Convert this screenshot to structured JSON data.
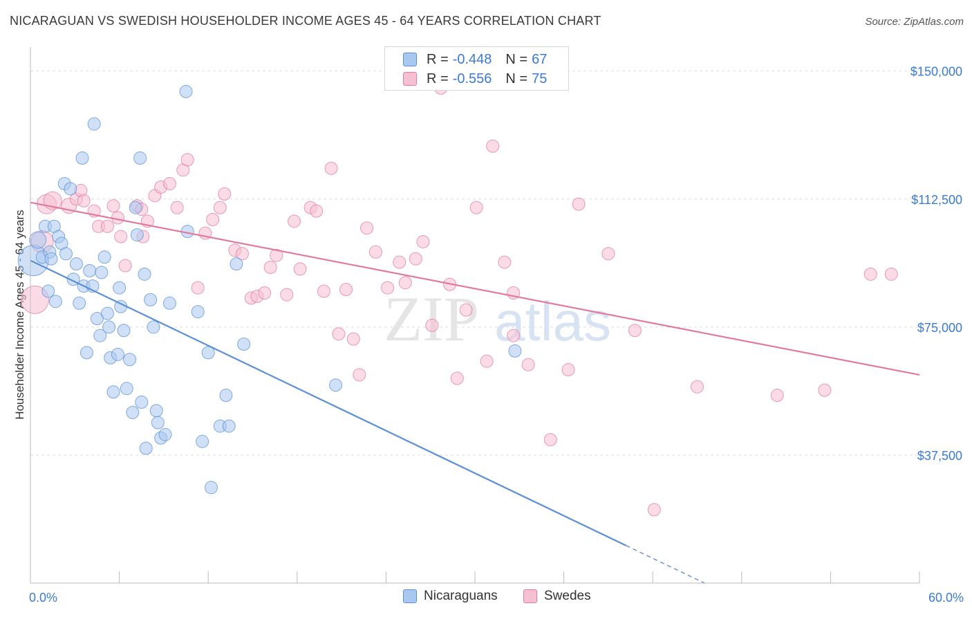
{
  "header": {
    "title": "NICARAGUAN VS SWEDISH HOUSEHOLDER INCOME AGES 45 - 64 YEARS CORRELATION CHART",
    "source": "Source: ZipAtlas.com"
  },
  "watermark": {
    "zip": "ZIP",
    "atlas": "atlas"
  },
  "legend": {
    "rows": [
      {
        "r_label": "R =",
        "r_value": "-0.448",
        "n_label": "N =",
        "n_value": "67",
        "color": "#a9c8f0",
        "border": "#5b8fd6"
      },
      {
        "r_label": "R =",
        "r_value": "-0.556",
        "n_label": "N =",
        "n_value": "75",
        "color": "#f7bfd2",
        "border": "#e07aa0"
      }
    ]
  },
  "bottom_legend": {
    "series1": "Nicaraguans",
    "series2": "Swedes"
  },
  "chart_data": {
    "type": "scatter",
    "title": "NICARAGUAN VS SWEDISH HOUSEHOLDER INCOME AGES 45 - 64 YEARS CORRELATION CHART",
    "xlabel": "",
    "ylabel": "Householder Income Ages 45 - 64 years",
    "xlim": [
      0,
      60
    ],
    "ylim": [
      0,
      155000
    ],
    "x_tick_labels": [
      "0.0%",
      "60.0%"
    ],
    "y_ticks": [
      37500,
      75000,
      112500,
      150000
    ],
    "y_tick_labels": [
      "$37,500",
      "$75,000",
      "$112,500",
      "$150,000"
    ],
    "series": [
      {
        "name": "Nicaraguans",
        "color": "#5b8fd6",
        "fill": "#a9c8f0",
        "trend": {
          "x": [
            0,
            40.2
          ],
          "y": [
            94500,
            11000
          ],
          "dash_to": [
            45.5,
            0
          ]
        },
        "points": [
          [
            0.2,
            94500,
            22
          ],
          [
            0.5,
            100500,
            12
          ],
          [
            0.8,
            95500,
            9
          ],
          [
            1.0,
            104500,
            9
          ],
          [
            1.2,
            85500,
            9
          ],
          [
            1.3,
            97000,
            9
          ],
          [
            1.4,
            95000,
            9
          ],
          [
            1.6,
            104500,
            9
          ],
          [
            1.7,
            82500,
            9
          ],
          [
            1.9,
            101500,
            9
          ],
          [
            2.1,
            99500,
            9
          ],
          [
            2.3,
            117000,
            9
          ],
          [
            2.4,
            96500,
            9
          ],
          [
            2.7,
            115500,
            9
          ],
          [
            2.9,
            89000,
            9
          ],
          [
            3.1,
            93500,
            9
          ],
          [
            3.3,
            82000,
            9
          ],
          [
            3.5,
            124500,
            9
          ],
          [
            3.6,
            87000,
            9
          ],
          [
            3.8,
            67500,
            9
          ],
          [
            4.0,
            91500,
            9
          ],
          [
            4.2,
            87000,
            9
          ],
          [
            4.3,
            134500,
            9
          ],
          [
            4.5,
            77500,
            9
          ],
          [
            4.7,
            72500,
            9
          ],
          [
            4.8,
            91000,
            9
          ],
          [
            5.0,
            95500,
            9
          ],
          [
            5.2,
            79000,
            9
          ],
          [
            5.3,
            75000,
            9
          ],
          [
            5.4,
            66000,
            9
          ],
          [
            5.6,
            56000,
            9
          ],
          [
            5.9,
            67000,
            9
          ],
          [
            6.1,
            81000,
            9
          ],
          [
            6.0,
            86500,
            9
          ],
          [
            6.3,
            74000,
            9
          ],
          [
            6.5,
            57000,
            9
          ],
          [
            6.7,
            65500,
            9
          ],
          [
            6.9,
            50000,
            9
          ],
          [
            7.1,
            110000,
            9
          ],
          [
            7.2,
            102000,
            9
          ],
          [
            7.4,
            124500,
            9
          ],
          [
            7.5,
            53000,
            9
          ],
          [
            7.7,
            90500,
            9
          ],
          [
            7.8,
            39500,
            9
          ],
          [
            8.1,
            83000,
            9
          ],
          [
            8.3,
            75000,
            9
          ],
          [
            8.5,
            50500,
            9
          ],
          [
            8.6,
            47000,
            9
          ],
          [
            8.8,
            42500,
            9
          ],
          [
            9.1,
            43500,
            9
          ],
          [
            9.4,
            82000,
            9
          ],
          [
            10.5,
            144000,
            9
          ],
          [
            10.6,
            103000,
            9
          ],
          [
            11.3,
            79500,
            9
          ],
          [
            11.6,
            41500,
            9
          ],
          [
            12.0,
            67500,
            9
          ],
          [
            12.2,
            28000,
            9
          ],
          [
            12.8,
            46000,
            9
          ],
          [
            13.2,
            55000,
            9
          ],
          [
            13.4,
            46000,
            9
          ],
          [
            13.9,
            93500,
            9
          ],
          [
            14.4,
            70000,
            9
          ],
          [
            20.6,
            58000,
            9
          ],
          [
            32.7,
            68000,
            9
          ]
        ]
      },
      {
        "name": "Swedes",
        "color": "#e07aa0",
        "fill": "#f7bfd2",
        "trend": {
          "x": [
            0,
            60
          ],
          "y": [
            111500,
            61000
          ]
        },
        "points": [
          [
            0.3,
            83000,
            20
          ],
          [
            0.8,
            100000,
            16
          ],
          [
            1.1,
            111000,
            14
          ],
          [
            1.5,
            112000,
            13
          ],
          [
            2.6,
            110500,
            11
          ],
          [
            3.1,
            112500,
            9
          ],
          [
            3.4,
            115000,
            9
          ],
          [
            3.6,
            112000,
            9
          ],
          [
            4.3,
            109000,
            9
          ],
          [
            4.6,
            104500,
            9
          ],
          [
            5.2,
            104500,
            9
          ],
          [
            5.6,
            110500,
            9
          ],
          [
            5.9,
            107000,
            9
          ],
          [
            6.1,
            101500,
            9
          ],
          [
            6.4,
            93000,
            9
          ],
          [
            7.2,
            110500,
            9
          ],
          [
            7.5,
            109500,
            9
          ],
          [
            7.6,
            101500,
            9
          ],
          [
            7.9,
            106000,
            9
          ],
          [
            8.4,
            113500,
            9
          ],
          [
            8.8,
            116000,
            9
          ],
          [
            9.4,
            117000,
            9
          ],
          [
            9.9,
            110000,
            9
          ],
          [
            10.3,
            121000,
            9
          ],
          [
            10.6,
            124000,
            9
          ],
          [
            11.3,
            86500,
            9
          ],
          [
            11.8,
            102500,
            9
          ],
          [
            12.3,
            106500,
            9
          ],
          [
            12.8,
            110000,
            9
          ],
          [
            13.1,
            114000,
            9
          ],
          [
            13.8,
            97500,
            9
          ],
          [
            14.3,
            96500,
            9
          ],
          [
            14.9,
            83500,
            9
          ],
          [
            15.3,
            84000,
            9
          ],
          [
            15.8,
            85000,
            9
          ],
          [
            16.2,
            92500,
            9
          ],
          [
            16.6,
            96000,
            9
          ],
          [
            17.3,
            84500,
            9
          ],
          [
            17.8,
            106000,
            9
          ],
          [
            18.2,
            92000,
            9
          ],
          [
            18.9,
            110000,
            9
          ],
          [
            19.3,
            109000,
            9
          ],
          [
            19.8,
            85500,
            9
          ],
          [
            20.3,
            121500,
            9
          ],
          [
            20.8,
            73000,
            9
          ],
          [
            21.3,
            86000,
            9
          ],
          [
            21.8,
            71500,
            9
          ],
          [
            22.2,
            61000,
            9
          ],
          [
            22.7,
            104000,
            9
          ],
          [
            23.3,
            97000,
            9
          ],
          [
            24.1,
            86500,
            9
          ],
          [
            24.9,
            94000,
            9
          ],
          [
            25.3,
            88000,
            9
          ],
          [
            26.0,
            95000,
            9
          ],
          [
            26.5,
            100000,
            9
          ],
          [
            27.1,
            75500,
            9
          ],
          [
            27.7,
            145000,
            9
          ],
          [
            28.3,
            87500,
            9
          ],
          [
            28.8,
            60000,
            9
          ],
          [
            29.4,
            80000,
            9
          ],
          [
            30.1,
            110000,
            9
          ],
          [
            30.8,
            65000,
            9
          ],
          [
            31.2,
            128000,
            9
          ],
          [
            32.0,
            94000,
            9
          ],
          [
            32.6,
            85000,
            9
          ],
          [
            32.6,
            72500,
            9
          ],
          [
            33.6,
            64000,
            9
          ],
          [
            35.1,
            42000,
            9
          ],
          [
            36.3,
            62500,
            9
          ],
          [
            37.0,
            111000,
            9
          ],
          [
            39.0,
            96500,
            9
          ],
          [
            40.8,
            74000,
            9
          ],
          [
            42.1,
            21500,
            9
          ],
          [
            45.0,
            57500,
            9
          ],
          [
            50.4,
            55000,
            9
          ],
          [
            53.6,
            56500,
            9
          ],
          [
            56.7,
            90500,
            9
          ],
          [
            58.1,
            90500,
            9
          ]
        ]
      }
    ]
  }
}
